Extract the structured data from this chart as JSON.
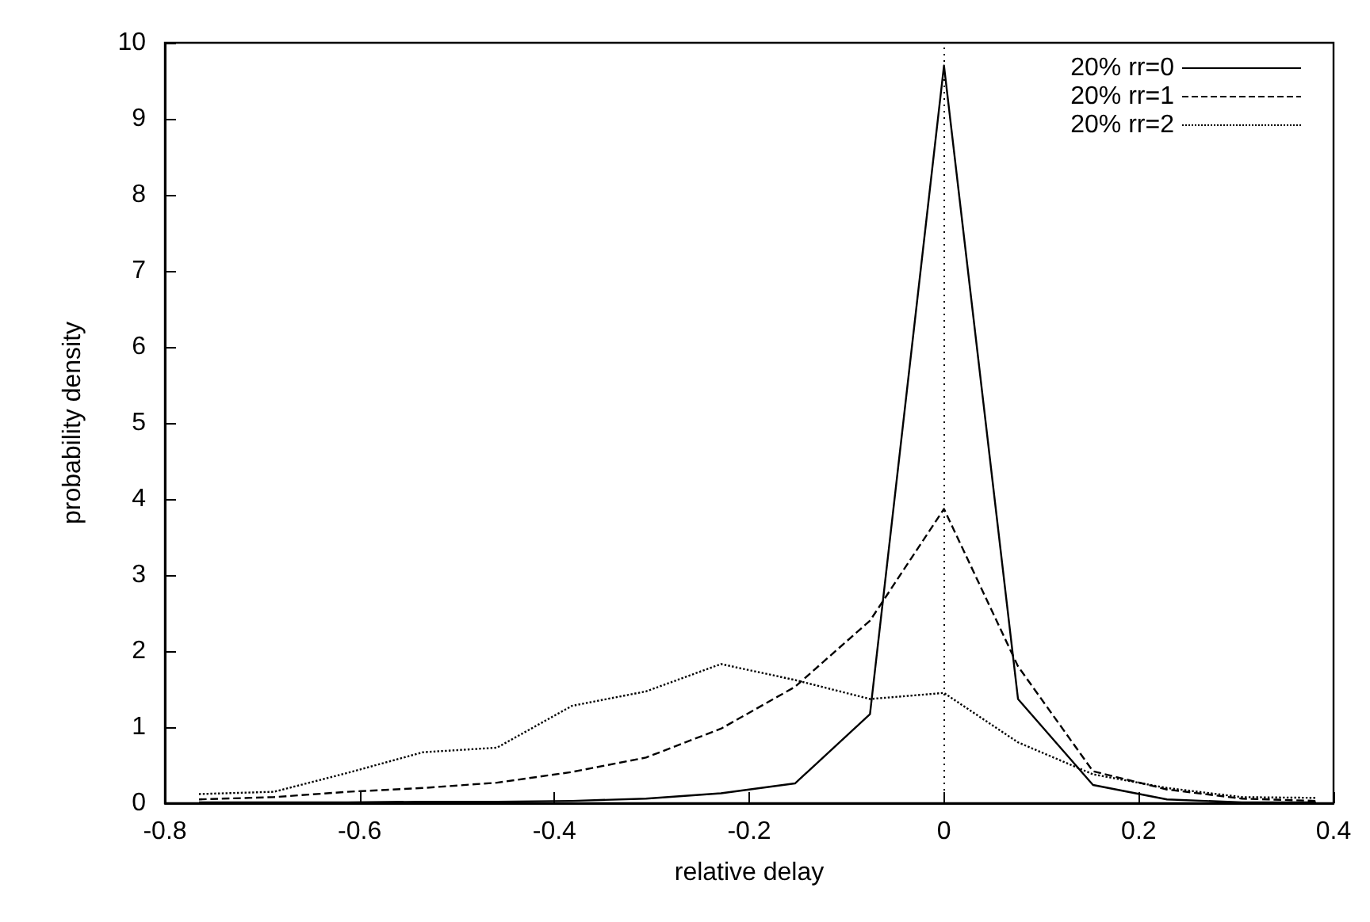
{
  "chart_data": {
    "type": "line",
    "xlabel": "relative delay",
    "ylabel": "probability density",
    "x": [
      -0.765,
      -0.688,
      -0.612,
      -0.535,
      -0.459,
      -0.382,
      -0.306,
      -0.229,
      -0.153,
      -0.076,
      0,
      0.076,
      0.153,
      0.229,
      0.306,
      0.382
    ],
    "xlim": [
      -0.8,
      0.4
    ],
    "xticks": [
      -0.8,
      -0.6,
      -0.4,
      -0.2,
      0,
      0.2,
      0.4
    ],
    "ylim": [
      0,
      10
    ],
    "yticks": [
      0,
      1,
      2,
      3,
      4,
      5,
      6,
      7,
      8,
      9,
      10
    ],
    "grid": false,
    "legend": "top right",
    "marker": "none",
    "ref_lines": [
      {
        "axis": "x",
        "value": 0,
        "color": "#000000",
        "line_style": "dotted"
      }
    ],
    "series": [
      {
        "name": "20% rr=0",
        "color": "#000000",
        "line_style": "solid",
        "values": [
          0.01,
          0.01,
          0.01,
          0.02,
          0.02,
          0.03,
          0.06,
          0.13,
          0.26,
          1.17,
          9.7,
          1.37,
          0.24,
          0.05,
          0.01,
          0.01
        ]
      },
      {
        "name": "20% rr=1",
        "color": "#000000",
        "line_style": "dashed",
        "values": [
          0.05,
          0.08,
          0.15,
          0.2,
          0.27,
          0.41,
          0.6,
          0.98,
          1.53,
          2.4,
          3.87,
          1.8,
          0.42,
          0.18,
          0.06,
          0.03
        ]
      },
      {
        "name": "20% rr=2",
        "color": "#000000",
        "line_style": "dotted",
        "values": [
          0.12,
          0.15,
          0.4,
          0.67,
          0.73,
          1.28,
          1.47,
          1.83,
          1.62,
          1.37,
          1.45,
          0.8,
          0.38,
          0.2,
          0.08,
          0.07
        ]
      }
    ]
  }
}
